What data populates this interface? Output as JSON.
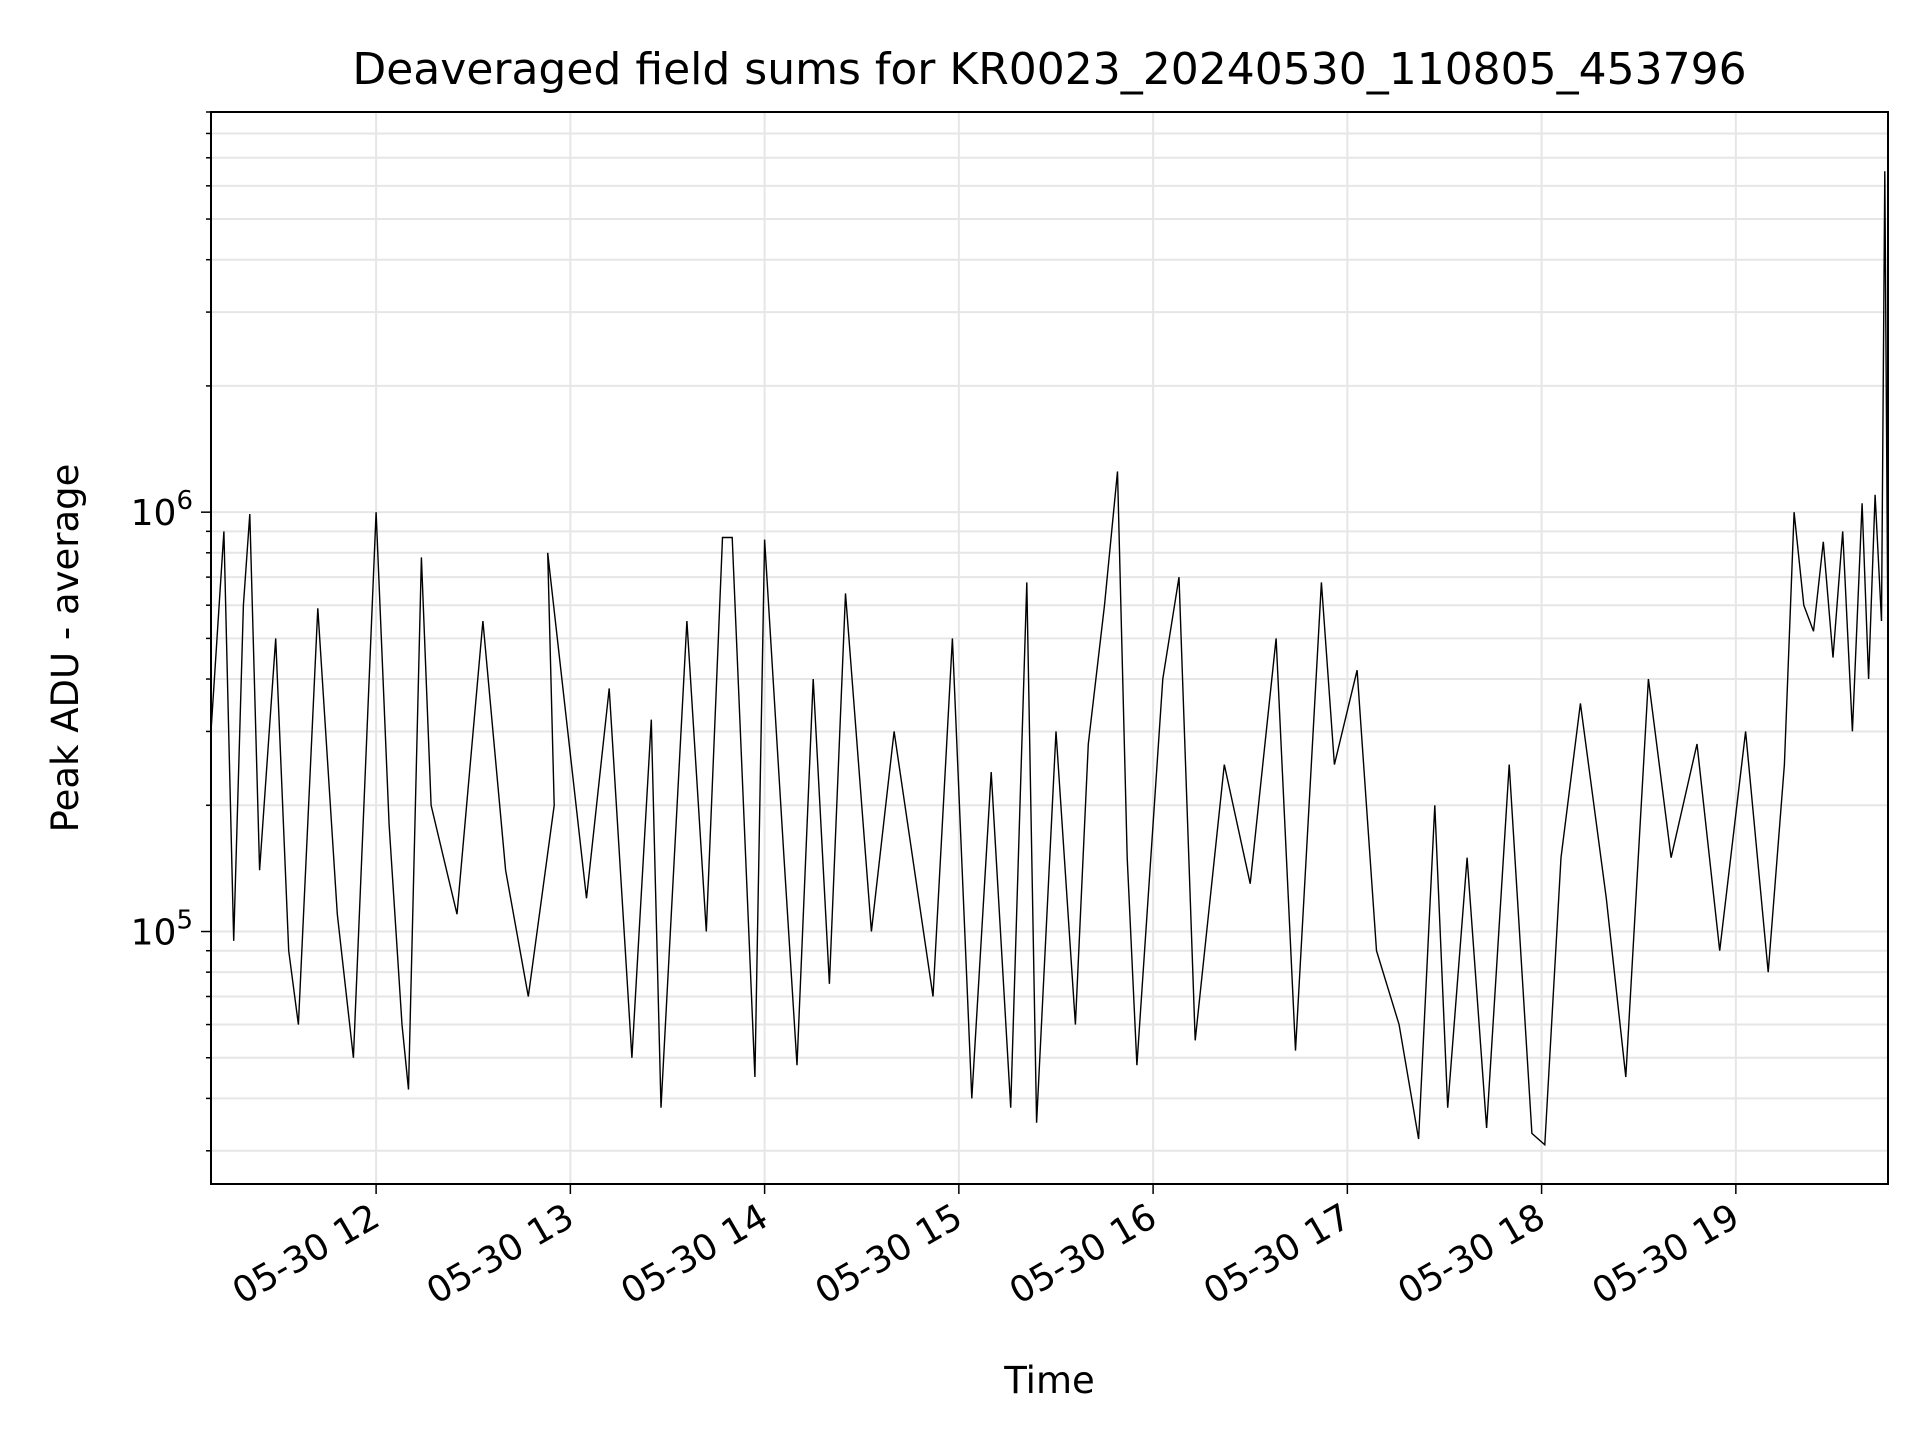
{
  "chart_data": {
    "type": "line",
    "title": "Deaveraged field sums for KR0023_20240530_110805_453796",
    "xlabel": "Time",
    "ylabel": "Peak ADU - average",
    "x_scale": "time",
    "y_scale": "log",
    "xlim": [
      "2024-05-30 11:09",
      "2024-05-30 19:47"
    ],
    "ylim": [
      25000,
      9000000
    ],
    "grid": true,
    "line_color": "#000000",
    "x_ticks": [
      {
        "value": "2024-05-30 12:00",
        "label": "05-30 12"
      },
      {
        "value": "2024-05-30 13:00",
        "label": "05-30 13"
      },
      {
        "value": "2024-05-30 14:00",
        "label": "05-30 14"
      },
      {
        "value": "2024-05-30 15:00",
        "label": "05-30 15"
      },
      {
        "value": "2024-05-30 16:00",
        "label": "05-30 16"
      },
      {
        "value": "2024-05-30 17:00",
        "label": "05-30 17"
      },
      {
        "value": "2024-05-30 18:00",
        "label": "05-30 18"
      },
      {
        "value": "2024-05-30 19:00",
        "label": "05-30 19"
      }
    ],
    "y_ticks": [
      {
        "value": 100000,
        "base": "10",
        "exp": "5"
      },
      {
        "value": 1000000,
        "base": "10",
        "exp": "6"
      }
    ],
    "series": [
      {
        "points": [
          [
            "2024-05-30 11:09",
            300000
          ],
          [
            "2024-05-30 11:13",
            900000
          ],
          [
            "2024-05-30 11:16",
            95000
          ],
          [
            "2024-05-30 11:19",
            600000
          ],
          [
            "2024-05-30 11:21",
            990000
          ],
          [
            "2024-05-30 11:24",
            140000
          ],
          [
            "2024-05-30 11:29",
            500000
          ],
          [
            "2024-05-30 11:33",
            90000
          ],
          [
            "2024-05-30 11:36",
            60000
          ],
          [
            "2024-05-30 11:42",
            590000
          ],
          [
            "2024-05-30 11:48",
            110000
          ],
          [
            "2024-05-30 11:53",
            50000
          ],
          [
            "2024-05-30 12:00",
            1000000
          ],
          [
            "2024-05-30 12:04",
            180000
          ],
          [
            "2024-05-30 12:08",
            60000
          ],
          [
            "2024-05-30 12:10",
            42000
          ],
          [
            "2024-05-30 12:14",
            780000
          ],
          [
            "2024-05-30 12:17",
            200000
          ],
          [
            "2024-05-30 12:25",
            110000
          ],
          [
            "2024-05-30 12:33",
            550000
          ],
          [
            "2024-05-30 12:40",
            140000
          ],
          [
            "2024-05-30 12:47",
            70000
          ],
          [
            "2024-05-30 12:55",
            200000
          ],
          [
            "2024-05-30 12:53",
            800000
          ],
          [
            "2024-05-30 13:05",
            120000
          ],
          [
            "2024-05-30 13:12",
            380000
          ],
          [
            "2024-05-30 13:19",
            50000
          ],
          [
            "2024-05-30 13:25",
            320000
          ],
          [
            "2024-05-30 13:28",
            38000
          ],
          [
            "2024-05-30 13:36",
            550000
          ],
          [
            "2024-05-30 13:42",
            100000
          ],
          [
            "2024-05-30 13:47",
            870000
          ],
          [
            "2024-05-30 13:50",
            870000
          ],
          [
            "2024-05-30 13:57",
            45000
          ],
          [
            "2024-05-30 14:00",
            860000
          ],
          [
            "2024-05-30 14:06",
            150000
          ],
          [
            "2024-05-30 14:10",
            48000
          ],
          [
            "2024-05-30 14:15",
            400000
          ],
          [
            "2024-05-30 14:20",
            75000
          ],
          [
            "2024-05-30 14:25",
            640000
          ],
          [
            "2024-05-30 14:33",
            100000
          ],
          [
            "2024-05-30 14:40",
            300000
          ],
          [
            "2024-05-30 14:52",
            70000
          ],
          [
            "2024-05-30 14:58",
            500000
          ],
          [
            "2024-05-30 15:04",
            40000
          ],
          [
            "2024-05-30 15:10",
            240000
          ],
          [
            "2024-05-30 15:16",
            38000
          ],
          [
            "2024-05-30 15:21",
            680000
          ],
          [
            "2024-05-30 15:24",
            35000
          ],
          [
            "2024-05-30 15:30",
            300000
          ],
          [
            "2024-05-30 15:36",
            60000
          ],
          [
            "2024-05-30 15:40",
            280000
          ],
          [
            "2024-05-30 15:45",
            600000
          ],
          [
            "2024-05-30 15:49",
            1250000
          ],
          [
            "2024-05-30 15:52",
            150000
          ],
          [
            "2024-05-30 15:55",
            48000
          ],
          [
            "2024-05-30 16:03",
            400000
          ],
          [
            "2024-05-30 16:08",
            700000
          ],
          [
            "2024-05-30 16:13",
            55000
          ],
          [
            "2024-05-30 16:22",
            250000
          ],
          [
            "2024-05-30 16:30",
            130000
          ],
          [
            "2024-05-30 16:38",
            500000
          ],
          [
            "2024-05-30 16:44",
            52000
          ],
          [
            "2024-05-30 16:52",
            680000
          ],
          [
            "2024-05-30 16:56",
            250000
          ],
          [
            "2024-05-30 17:03",
            420000
          ],
          [
            "2024-05-30 17:09",
            90000
          ],
          [
            "2024-05-30 17:16",
            60000
          ],
          [
            "2024-05-30 17:22",
            32000
          ],
          [
            "2024-05-30 17:27",
            200000
          ],
          [
            "2024-05-30 17:31",
            38000
          ],
          [
            "2024-05-30 17:37",
            150000
          ],
          [
            "2024-05-30 17:43",
            34000
          ],
          [
            "2024-05-30 17:50",
            250000
          ],
          [
            "2024-05-30 17:57",
            33000
          ],
          [
            "2024-05-30 18:01",
            31000
          ],
          [
            "2024-05-30 18:06",
            150000
          ],
          [
            "2024-05-30 18:12",
            350000
          ],
          [
            "2024-05-30 18:20",
            120000
          ],
          [
            "2024-05-30 18:26",
            45000
          ],
          [
            "2024-05-30 18:33",
            400000
          ],
          [
            "2024-05-30 18:40",
            150000
          ],
          [
            "2024-05-30 18:48",
            280000
          ],
          [
            "2024-05-30 18:55",
            90000
          ],
          [
            "2024-05-30 19:03",
            300000
          ],
          [
            "2024-05-30 19:10",
            80000
          ],
          [
            "2024-05-30 19:15",
            250000
          ],
          [
            "2024-05-30 19:18",
            1000000
          ],
          [
            "2024-05-30 19:21",
            600000
          ],
          [
            "2024-05-30 19:24",
            520000
          ],
          [
            "2024-05-30 19:27",
            850000
          ],
          [
            "2024-05-30 19:30",
            450000
          ],
          [
            "2024-05-30 19:33",
            900000
          ],
          [
            "2024-05-30 19:36",
            300000
          ],
          [
            "2024-05-30 19:39",
            1050000
          ],
          [
            "2024-05-30 19:41",
            400000
          ],
          [
            "2024-05-30 19:43",
            1100000
          ],
          [
            "2024-05-30 19:45",
            550000
          ],
          [
            "2024-05-30 19:46",
            6500000
          ],
          [
            "2024-05-30 19:47",
            480000
          ]
        ]
      }
    ]
  }
}
